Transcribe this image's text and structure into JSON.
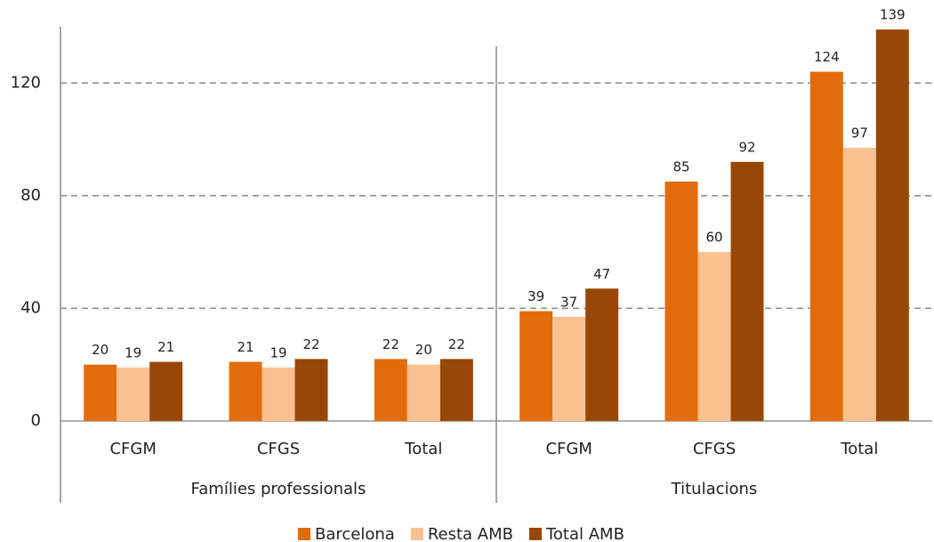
{
  "chart_data": {
    "type": "bar",
    "groups": [
      {
        "label": "Famílies professionals",
        "categories": [
          "CFGM",
          "CFGS",
          "Total"
        ]
      },
      {
        "label": "Titulacions",
        "categories": [
          "CFGM",
          "CFGS",
          "Total"
        ]
      }
    ],
    "series": [
      {
        "name": "Barcelona",
        "color": "#e36c0a",
        "values": [
          20,
          21,
          22,
          39,
          85,
          124
        ]
      },
      {
        "name": "Resta AMB",
        "color": "#fac090",
        "values": [
          19,
          19,
          20,
          37,
          60,
          97
        ]
      },
      {
        "name": "Total AMB",
        "color": "#974806",
        "values": [
          21,
          22,
          22,
          47,
          92,
          139
        ]
      }
    ],
    "ylim": [
      0,
      140
    ],
    "yticks": [
      0,
      40,
      80,
      120
    ],
    "grid": true,
    "legend": "bottom"
  }
}
